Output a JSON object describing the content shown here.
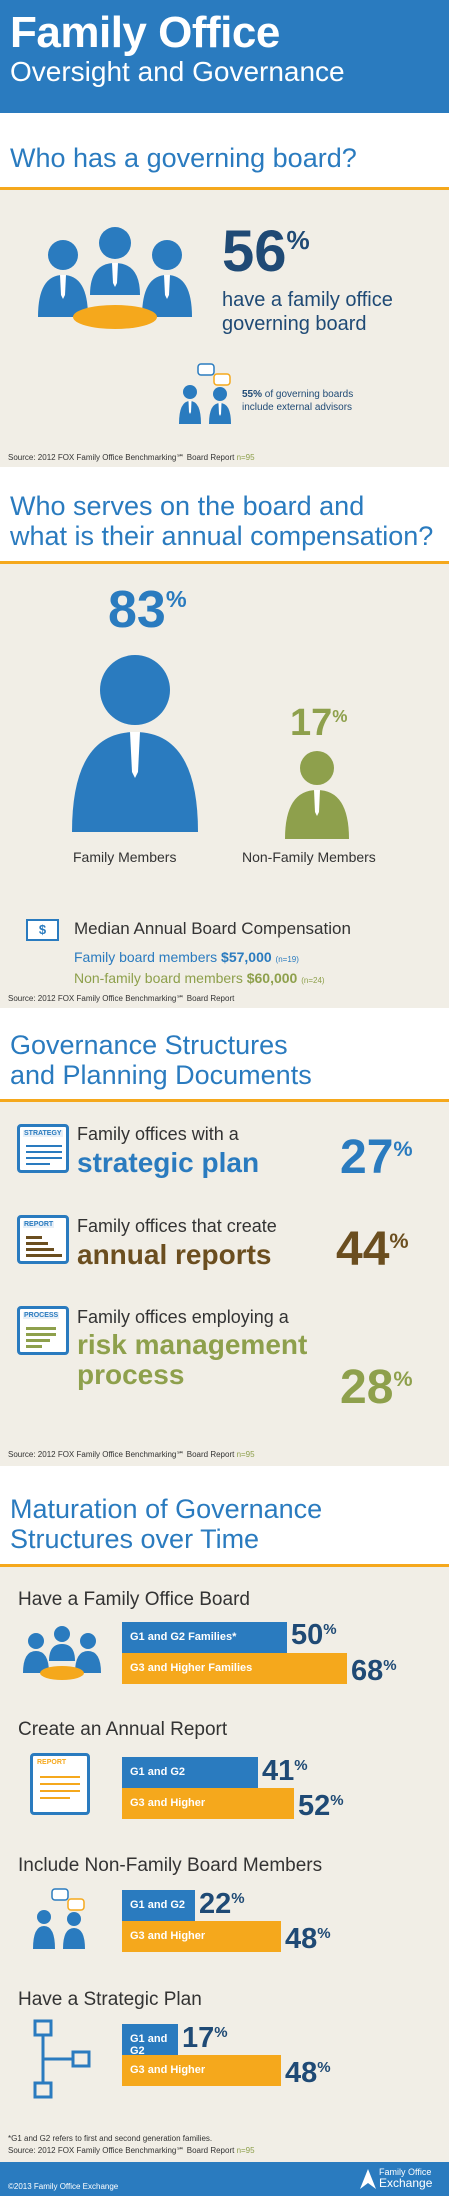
{
  "header": {
    "title": "Family Office",
    "subtitle": "Oversight and Governance"
  },
  "colors": {
    "blue": "#2a7bbf",
    "orange": "#f5a81c",
    "brown": "#6b4e1f",
    "green": "#8ea04c",
    "navy": "#1f4a75",
    "beige": "#f1eee6"
  },
  "s1": {
    "heading": "Who has a governing board?",
    "pct": "56",
    "pct_sign": "%",
    "text1": "have a family office",
    "text2": "governing board",
    "sub_pct": "55%",
    "sub_text1": "of governing boards",
    "sub_text2": "include external advisors",
    "source": "Source:  2012 FOX Family Office Benchmarking℠ Board Report",
    "n": "n=95"
  },
  "s2": {
    "heading1": "Who serves on the board and",
    "heading2": "what is their annual compensation?",
    "family_pct": "83",
    "nonfamily_pct": "17",
    "pct_sign": "%",
    "family_label": "Family Members",
    "nonfamily_label": "Non-Family Members",
    "dollar_icon": "$",
    "comp_title": "Median Annual Board Compensation",
    "fam_line": "Family board members",
    "fam_amt": "$57,000",
    "fam_n": "(n=19)",
    "nonfam_line": "Non-family board members",
    "nonfam_amt": "$60,000",
    "nonfam_n": "(n=24)",
    "source": "Source:  2012 FOX Family Office Benchmarking℠ Board Report"
  },
  "s3": {
    "heading1": "Governance Structures",
    "heading2": "and Planning Documents",
    "items": [
      {
        "icon": "STRATEGY",
        "line1": "Family offices with a",
        "line2": "strategic plan",
        "line3": "",
        "pct": "27"
      },
      {
        "icon": "REPORT",
        "line1": "Family offices that create",
        "line2": "annual reports",
        "line3": "",
        "pct": "44"
      },
      {
        "icon": "PROCESS",
        "line1": "Family offices employing a",
        "line2": "risk management",
        "line3": "process",
        "pct": "28"
      }
    ],
    "pct_sign": "%",
    "source": "Source: 2012 FOX Family Office Benchmarking℠ Board Report",
    "n": "n=95"
  },
  "s4": {
    "heading1": "Maturation of Governance",
    "heading2": "Structures over Time",
    "groups": [
      {
        "title": "Have a Family Office Board",
        "bar1": "G1 and G2 Families*",
        "v1": 50,
        "bar2": "G3 and Higher Families",
        "v2": 68
      },
      {
        "title": "Create an Annual Report",
        "icon_label": "REPORT",
        "bar1": "G1 and G2",
        "v1": 41,
        "bar2": "G3 and Higher",
        "v2": 52
      },
      {
        "title": "Include Non-Family Board Members",
        "bar1": "G1 and G2",
        "v1": 22,
        "bar2": "G3 and Higher",
        "v2": 48
      },
      {
        "title": "Have a Strategic Plan",
        "bar1": "G1 and G2",
        "v1": 17,
        "bar2": "G3 and Higher",
        "v2": 48
      }
    ],
    "pct_sign": "%",
    "footnote": "*G1 and G2 refers to first and second generation families.",
    "source": "Source: 2012 FOX Family Office Benchmarking℠ Board Report",
    "n": "n=95"
  },
  "footer": {
    "copyright": "©2013 Family Office Exchange",
    "logo1": "Family Office",
    "logo2": "Exchange"
  }
}
